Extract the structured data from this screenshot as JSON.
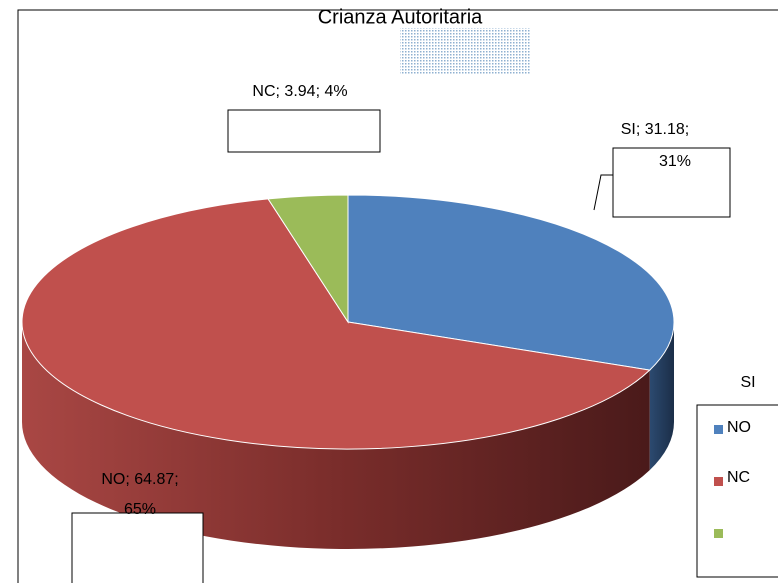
{
  "chart_data": {
    "type": "pie",
    "title": "Crianza Autoritaria",
    "categories": [
      "SI",
      "NO",
      "NC"
    ],
    "series": [
      {
        "name": "Crianza Autoritaria",
        "colors": [
          "#4f81bd",
          "#c0504d",
          "#9bbb59"
        ],
        "values": [
          31.18,
          64.87,
          3.94
        ]
      }
    ],
    "data_labels": [
      [
        "SI; 31.18;",
        "31%"
      ],
      [
        "NO; 64.87;",
        "65%"
      ],
      [
        "NC; 3.94; 4%"
      ]
    ],
    "legend": "right"
  }
}
